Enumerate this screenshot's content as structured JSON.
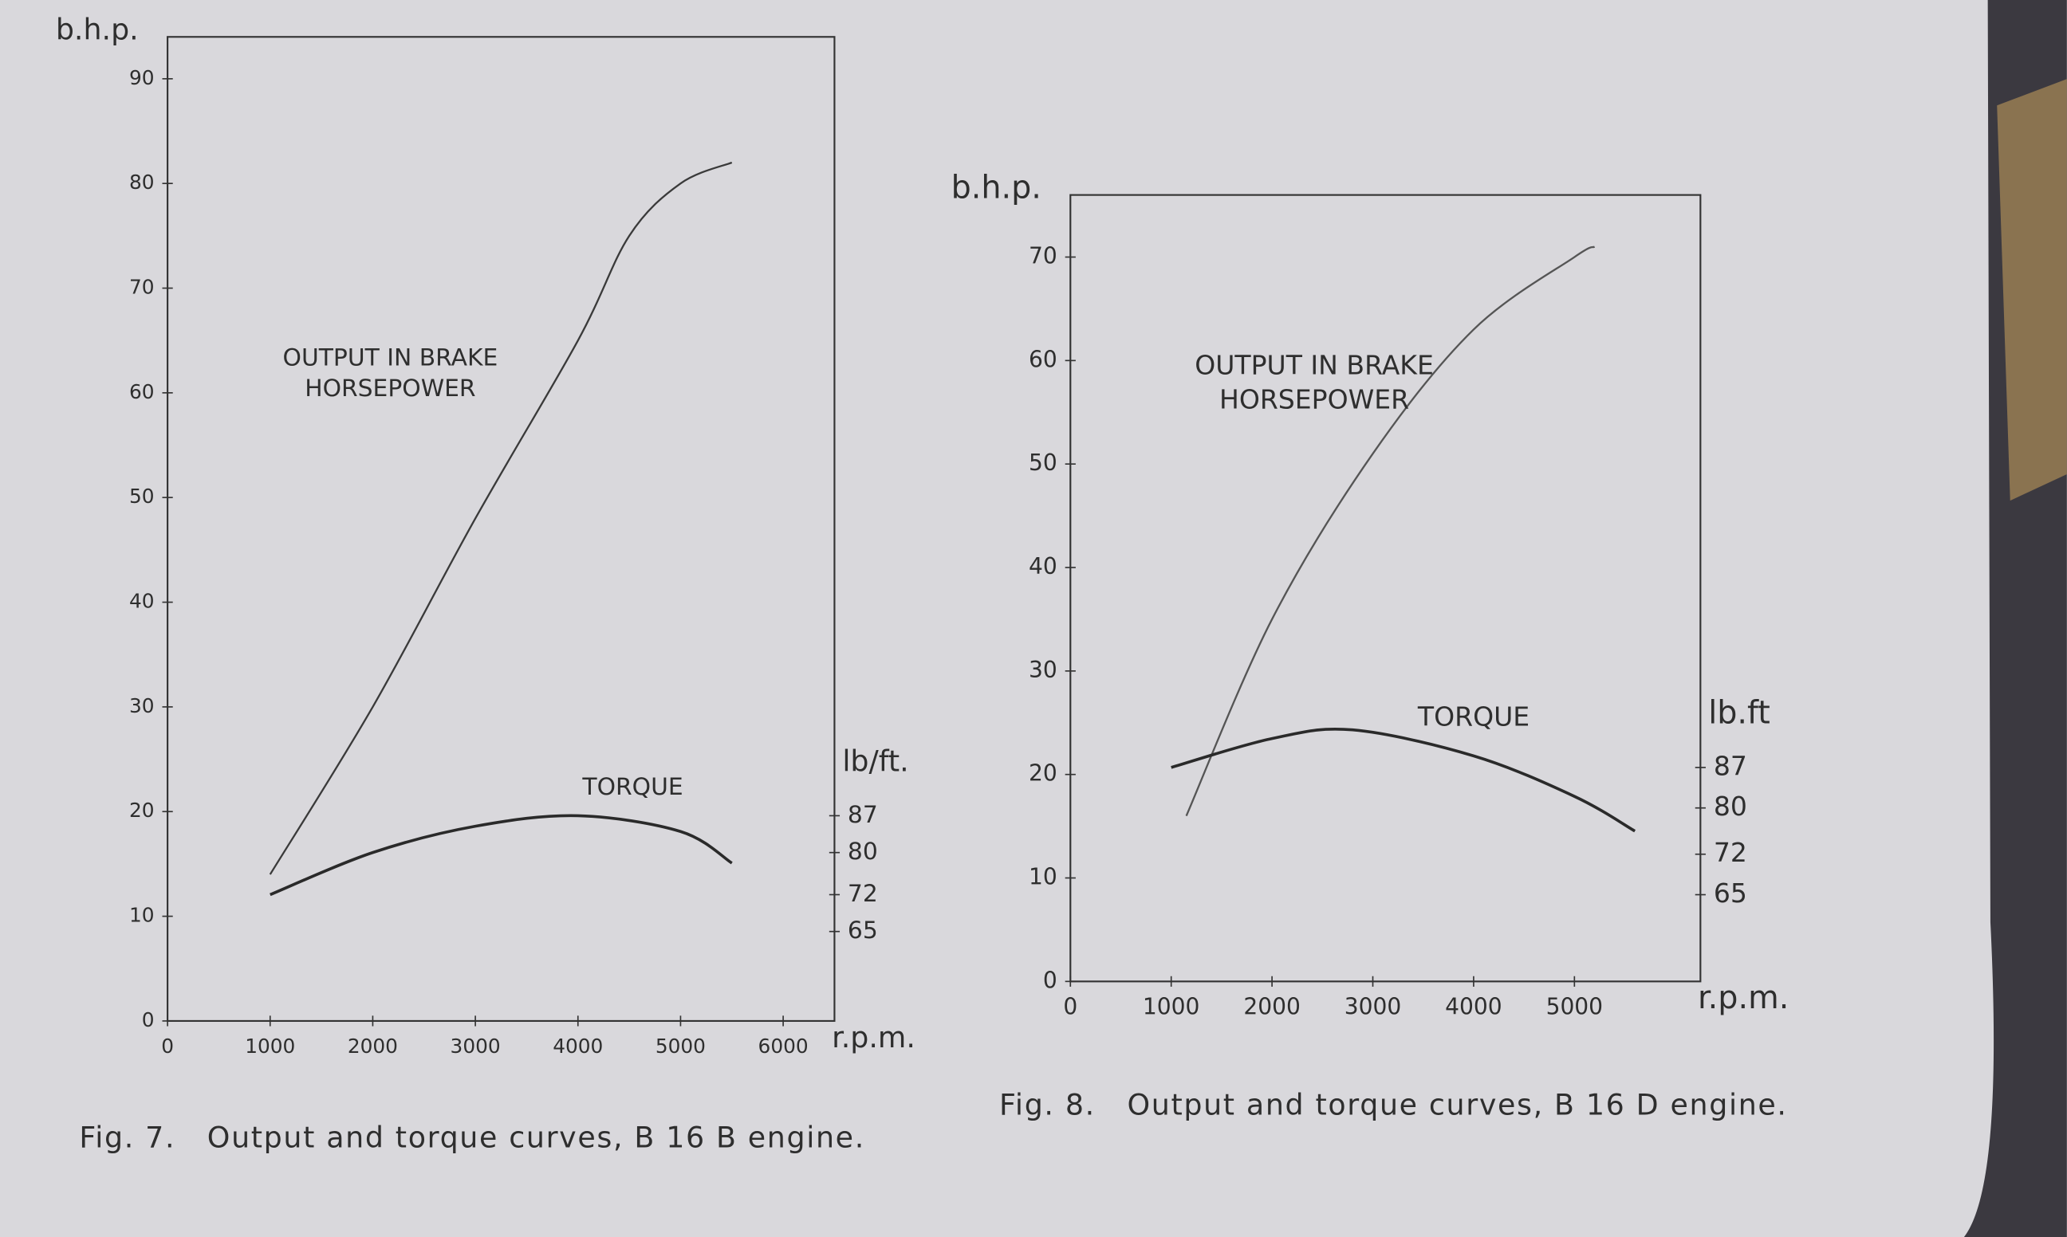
{
  "chart_data": [
    {
      "type": "line",
      "y_label": "b.h.p.",
      "y2_label": "lb/ft.",
      "x_label": "r.p.m.",
      "caption": "Fig. 7.   Output and torque curves, B 16 B engine.",
      "xlim": [
        0,
        6500
      ],
      "xticks": [
        0,
        1000,
        2000,
        3000,
        4000,
        5000,
        6000
      ],
      "ylim": [
        0,
        94
      ],
      "yticks": [
        0,
        10,
        20,
        30,
        40,
        50,
        60,
        70,
        80,
        90
      ],
      "y2lim": [
        48,
        235
      ],
      "y2ticks": [
        65,
        72,
        80,
        87
      ],
      "series": [
        {
          "name": "OUTPUT IN BRAKE HORSEPOWER",
          "color": "#3a3a3a",
          "x": [
            1000,
            2000,
            3000,
            4000,
            4500,
            5000,
            5500
          ],
          "values": [
            14,
            30,
            48,
            65,
            75,
            80,
            82
          ]
        },
        {
          "name": "TORQUE",
          "color": "#2a2a2a",
          "axis": "y2",
          "x": [
            1000,
            2000,
            3000,
            4000,
            5000,
            5500
          ],
          "values": [
            72,
            80,
            85,
            87,
            84,
            78
          ]
        }
      ]
    },
    {
      "type": "line",
      "y_label": "b.h.p.",
      "y2_label": "lb.ft",
      "x_label": "r.p.m.",
      "caption": "Fig. 8.   Output and torque curves, B 16 D engine.",
      "xlim": [
        0,
        6250
      ],
      "xticks": [
        0,
        1000,
        2000,
        3000,
        4000,
        5000
      ],
      "ylim": [
        0,
        76
      ],
      "yticks": [
        0,
        10,
        20,
        30,
        40,
        50,
        60,
        70
      ],
      "y2lim": [
        50,
        186
      ],
      "y2ticks": [
        65,
        72,
        80,
        87
      ],
      "series": [
        {
          "name": "OUTPUT IN BRAKE HORSEPOWER",
          "color": "#555555",
          "x": [
            1150,
            2000,
            3000,
            4000,
            5000,
            5200
          ],
          "values": [
            16,
            35,
            51,
            63,
            70,
            71
          ]
        },
        {
          "name": "TORQUE",
          "color": "#2a2a2a",
          "axis": "y2",
          "x": [
            1000,
            2000,
            2800,
            4000,
            5000,
            5600
          ],
          "values": [
            87,
            92,
            93.5,
            89,
            82,
            76
          ]
        }
      ]
    }
  ]
}
